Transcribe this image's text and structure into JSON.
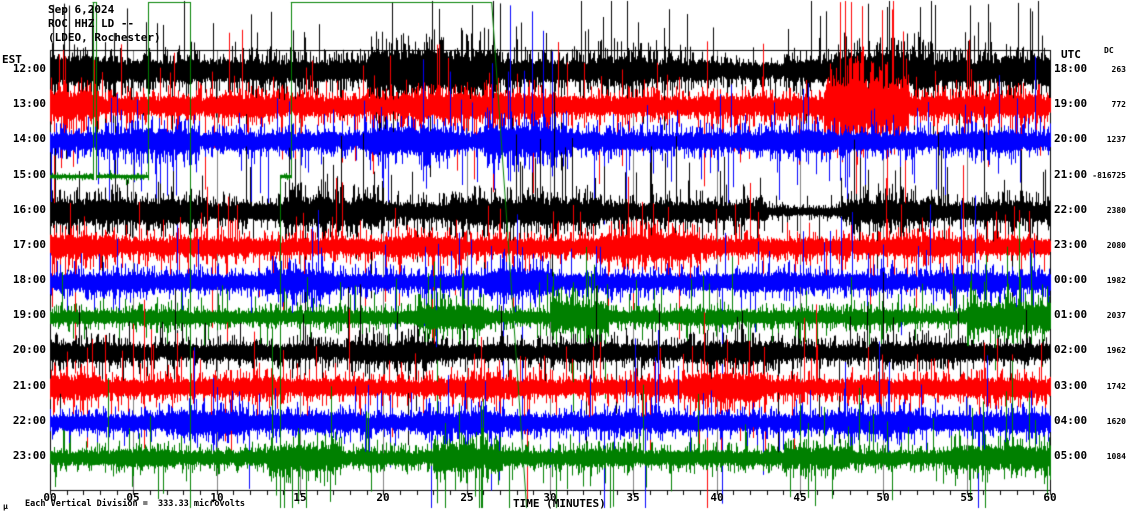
{
  "header": {
    "date_line": "Sep 6,2024",
    "station_line": "ROC HHZ LD --",
    "location_line": "(LDEO, Rochester)"
  },
  "left_axis": {
    "timezone_label": "EST",
    "times": [
      "12:00",
      "13:00",
      "14:00",
      "15:00",
      "16:00",
      "17:00",
      "18:00",
      "19:00",
      "20:00",
      "21:00",
      "22:00",
      "23:00"
    ]
  },
  "right_axis": {
    "timezone_label": "UTC",
    "dc_label": "DC",
    "times": [
      "18:00",
      "19:00",
      "20:00",
      "21:00",
      "22:00",
      "23:00",
      "00:00",
      "01:00",
      "02:00",
      "03:00",
      "04:00",
      "05:00"
    ],
    "dc_values": [
      "263",
      "772",
      "1237",
      "-816725",
      "2380",
      "2080",
      "1982",
      "2037",
      "1962",
      "1742",
      "1620",
      "1084"
    ]
  },
  "x_axis": {
    "label": "TIME (MINUTES)",
    "tick_labels": [
      "00",
      "05",
      "10",
      "15",
      "20",
      "25",
      "30",
      "35",
      "40",
      "45",
      "50",
      "55",
      "60"
    ]
  },
  "footer": {
    "mu_symbol": "µ",
    "scale_note": "Each Vertical Division =  333.33 microvolts"
  },
  "colors": {
    "trace_black": "#000000",
    "trace_red": "#ff0000",
    "trace_blue": "#0000ff",
    "trace_green": "#008000",
    "grid": "#808080",
    "axis": "#000000",
    "background": "#ffffff"
  },
  "chart_data": {
    "type": "line",
    "subtype": "helicorder-seismogram",
    "title": "ROC HHZ LD -- (LDEO, Rochester) Sep 6,2024",
    "xlabel": "TIME (MINUTES)",
    "x_range_minutes": [
      0,
      60
    ],
    "x_tick_step_minutes": 5,
    "grid": "vertical gray lines every 5 minutes",
    "vertical_division_microvolts": 333.33,
    "rows": [
      {
        "est": "12:00",
        "utc": "18:00",
        "dc": 263,
        "color": "#000000",
        "amp": 15,
        "spike_prob": 0.1,
        "seed": 101,
        "bursts": [
          [
            0,
            4,
            1.3
          ],
          [
            19,
            27,
            1.8
          ],
          [
            33,
            36,
            1.3
          ],
          [
            40,
            44,
            0.75
          ],
          [
            47,
            53,
            1.6
          ],
          [
            57,
            60,
            1.3
          ]
        ],
        "spikes": [
          {
            "m": 20.5,
            "u": 68,
            "d": 30
          },
          {
            "m": 22.9,
            "u": 70,
            "d": 45
          },
          {
            "m": 25.3,
            "u": 66,
            "d": 35
          },
          {
            "m": 34.6,
            "u": 60,
            "d": 25
          },
          {
            "m": 50.2,
            "u": 64,
            "d": 30
          }
        ]
      },
      {
        "est": "13:00",
        "utc": "19:00",
        "dc": 772,
        "color": "#ff0000",
        "amp": 13,
        "spike_prob": 0.08,
        "seed": 202,
        "bursts": [
          [
            0,
            3,
            1.5
          ],
          [
            10,
            14,
            1.2
          ],
          [
            21,
            30,
            1.3
          ],
          [
            46.5,
            51.5,
            2.8
          ],
          [
            55,
            60,
            1.2
          ]
        ],
        "spikes": [
          {
            "m": 47.4,
            "u": 104,
            "d": 40
          },
          {
            "m": 48.7,
            "u": 100,
            "d": 45
          },
          {
            "m": 49.9,
            "u": 96,
            "d": 38
          },
          {
            "m": 0.9,
            "u": 50,
            "d": 30
          }
        ]
      },
      {
        "est": "14:00",
        "utc": "20:00",
        "dc": 1237,
        "color": "#0000ff",
        "amp": 12,
        "spike_prob": 0.07,
        "seed": 303,
        "bursts": [
          [
            4.5,
            9,
            1.4
          ],
          [
            19,
            24,
            1.5
          ],
          [
            26,
            31,
            1.7
          ],
          [
            43,
            47,
            1.3
          ],
          [
            55,
            58,
            1.2
          ]
        ],
        "spikes": [
          {
            "m": 22.4,
            "u": 82,
            "d": 40
          },
          {
            "m": 27.6,
            "u": 136,
            "d": 40
          },
          {
            "m": 28.9,
            "u": 130,
            "d": 45
          },
          {
            "m": 30.1,
            "u": 90,
            "d": 35
          }
        ]
      },
      {
        "est": "15:00",
        "utc": "21:00",
        "dc": -816725,
        "color": "#008000",
        "amp": 2.5,
        "spike_prob": 0.02,
        "seed": 404,
        "bursts": [],
        "spikes": [],
        "rail": [
          [
            "normal",
            0,
            2.55
          ],
          [
            "top",
            2.55,
            2.75
          ],
          [
            "normal",
            2.75,
            5.9
          ],
          [
            "top",
            5.9,
            8.4
          ],
          [
            "bottom",
            8.4,
            13.8
          ],
          [
            "normal",
            13.8,
            14.45
          ],
          [
            "top",
            14.45,
            26.5
          ],
          [
            "slope",
            26.5,
            28.6
          ],
          [
            "bottom",
            28.6,
            60
          ]
        ]
      },
      {
        "est": "16:00",
        "utc": "22:00",
        "dc": 2380,
        "color": "#000000",
        "amp": 12,
        "spike_prob": 0.07,
        "seed": 505,
        "bursts": [
          [
            0,
            9,
            1.4
          ],
          [
            14,
            20,
            1.6
          ],
          [
            24,
            33,
            1.5
          ],
          [
            36,
            40,
            1.2
          ],
          [
            43,
            47.5,
            0.5
          ],
          [
            48,
            53,
            1.4
          ],
          [
            56,
            60,
            1.2
          ]
        ],
        "spikes": [
          {
            "m": 16.4,
            "u": 55,
            "d": 40
          },
          {
            "m": 28.2,
            "u": 50,
            "d": 45
          },
          {
            "m": 51,
            "u": 45,
            "d": 30
          }
        ]
      },
      {
        "est": "17:00",
        "utc": "23:00",
        "dc": 2080,
        "color": "#ff0000",
        "amp": 11,
        "spike_prob": 0.06,
        "seed": 606,
        "bursts": [
          [
            0,
            4,
            1.4
          ],
          [
            8,
            12,
            1.2
          ],
          [
            20,
            25,
            1.25
          ],
          [
            33,
            39,
            1.6
          ],
          [
            50,
            54,
            1.2
          ]
        ],
        "spikes": [
          {
            "m": 35.5,
            "u": 45,
            "d": 40
          },
          {
            "m": 37.1,
            "u": 40,
            "d": 42
          }
        ]
      },
      {
        "est": "18:00",
        "utc": "00:00",
        "dc": 1982,
        "color": "#0000ff",
        "amp": 11,
        "spike_prob": 0.06,
        "seed": 707,
        "bursts": [
          [
            2,
            6,
            1.2
          ],
          [
            13,
            17,
            1.5
          ],
          [
            26,
            30,
            1.6
          ],
          [
            41,
            45,
            1.2
          ],
          [
            53,
            57,
            1.2
          ]
        ],
        "spikes": [
          {
            "m": 27.2,
            "u": 30,
            "d": 150
          },
          {
            "m": 28.3,
            "u": 35,
            "d": 140
          },
          {
            "m": 15.7,
            "u": 55,
            "d": 30
          }
        ]
      },
      {
        "est": "19:00",
        "utc": "01:00",
        "dc": 2037,
        "color": "#008000",
        "amp": 9,
        "spike_prob": 0.06,
        "seed": 808,
        "bursts": [
          [
            5,
            8,
            1.2
          ],
          [
            22,
            26,
            1.7
          ],
          [
            30,
            33.5,
            2.3
          ],
          [
            38,
            41,
            1.2
          ],
          [
            48,
            51,
            1.2
          ],
          [
            55,
            60,
            2.2
          ]
        ],
        "spikes": [
          {
            "m": 23.2,
            "u": 25,
            "d": 186
          },
          {
            "m": 31.4,
            "u": 35,
            "d": 95
          },
          {
            "m": 32.3,
            "u": 45,
            "d": 40
          },
          {
            "m": 58.2,
            "u": 40,
            "d": 30
          }
        ]
      },
      {
        "est": "20:00",
        "utc": "02:00",
        "dc": 1962,
        "color": "#000000",
        "amp": 11,
        "spike_prob": 0.05,
        "seed": 909,
        "bursts": [
          [
            0,
            4,
            1.2
          ],
          [
            18,
            23,
            1.35
          ],
          [
            30,
            34,
            1.2
          ],
          [
            38,
            44,
            1.35
          ],
          [
            50,
            55,
            1.2
          ]
        ],
        "spikes": [
          {
            "m": 20.8,
            "u": 40,
            "d": 35
          },
          {
            "m": 41.5,
            "u": 42,
            "d": 30
          }
        ]
      },
      {
        "est": "21:00",
        "utc": "03:00",
        "dc": 1742,
        "color": "#ff0000",
        "amp": 11,
        "spike_prob": 0.06,
        "seed": 1010,
        "bursts": [
          [
            0,
            3,
            1.5
          ],
          [
            10,
            14,
            1.2
          ],
          [
            24,
            28,
            1.3
          ],
          [
            38,
            43,
            1.7
          ],
          [
            55,
            59,
            1.2
          ]
        ],
        "spikes": [
          {
            "m": 28.6,
            "u": 12,
            "d": 118
          },
          {
            "m": 40.6,
            "u": 48,
            "d": 35
          },
          {
            "m": 2.2,
            "u": 40,
            "d": 60
          }
        ]
      },
      {
        "est": "22:00",
        "utc": "04:00",
        "dc": 1620,
        "color": "#0000ff",
        "amp": 11,
        "spike_prob": 0.05,
        "seed": 1111,
        "bursts": [
          [
            7,
            12,
            1.5
          ],
          [
            16,
            19,
            1.2
          ],
          [
            22,
            27,
            1.4
          ],
          [
            33,
            37,
            1.2
          ],
          [
            47,
            52,
            1.35
          ],
          [
            57,
            60,
            1.2
          ]
        ],
        "spikes": [
          {
            "m": 9.8,
            "u": 45,
            "d": 35
          },
          {
            "m": 24.9,
            "u": 40,
            "d": 40
          },
          {
            "m": 50.3,
            "u": 42,
            "d": 30
          }
        ]
      },
      {
        "est": "23:00",
        "utc": "05:00",
        "dc": 1084,
        "color": "#008000",
        "amp": 10,
        "spike_prob": 0.06,
        "seed": 1212,
        "bursts": [
          [
            4,
            7,
            1.2
          ],
          [
            13,
            17.5,
            1.7
          ],
          [
            23,
            27,
            1.8
          ],
          [
            31,
            35,
            1.2
          ],
          [
            44,
            48,
            1.5
          ],
          [
            54,
            60,
            1.6
          ]
        ],
        "spikes": [
          {
            "m": 14.9,
            "u": 30,
            "d": 46
          },
          {
            "m": 23.7,
            "u": 35,
            "d": 52
          },
          {
            "m": 25.9,
            "u": 30,
            "d": 50
          },
          {
            "m": 45.5,
            "u": 35,
            "d": 40
          }
        ]
      }
    ]
  }
}
